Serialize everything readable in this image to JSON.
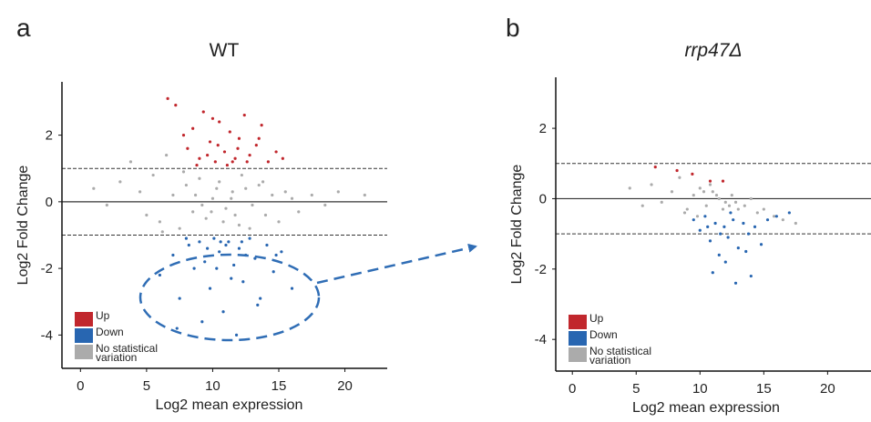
{
  "chart_data": [
    {
      "type": "scatter",
      "panel_label": "a",
      "title": "WT",
      "xlabel": "Log2 mean expression",
      "ylabel": "Log2 Fold Change",
      "xlim": [
        -1.4,
        23.2
      ],
      "ylim": [
        -5,
        3.6
      ],
      "xticks": [
        0,
        5,
        10,
        15,
        20
      ],
      "yticks": [
        -4,
        -2,
        0,
        2
      ],
      "reference_lines": [
        {
          "y": 1,
          "style": "dashed"
        },
        {
          "y": 0,
          "style": "solid"
        },
        {
          "y": -1,
          "style": "dashed"
        }
      ],
      "legend": "lower left",
      "series": [
        {
          "name": "Up",
          "color": "#c1272d",
          "x": [
            7.2,
            8.1,
            8.5,
            9.0,
            9.3,
            9.8,
            10.2,
            10.5,
            10.9,
            11.3,
            11.7,
            12.0,
            12.4,
            12.8,
            13.3,
            13.7,
            14.2,
            14.8,
            8.8,
            9.6,
            10.4,
            11.1,
            11.9,
            12.6,
            13.5,
            6.6,
            7.8,
            10.0,
            11.5,
            15.3
          ],
          "values": [
            2.9,
            1.6,
            2.2,
            1.3,
            2.7,
            1.8,
            1.2,
            2.4,
            1.5,
            2.1,
            1.3,
            1.9,
            2.6,
            1.4,
            1.7,
            2.3,
            1.2,
            1.5,
            1.1,
            1.4,
            1.7,
            1.1,
            1.6,
            1.2,
            1.9,
            3.1,
            2.0,
            2.5,
            1.2,
            1.3
          ]
        },
        {
          "name": "Down",
          "color": "#2866b1",
          "x": [
            6.0,
            7.0,
            7.5,
            8.2,
            8.6,
            9.0,
            9.4,
            9.8,
            10.1,
            10.5,
            10.8,
            11.2,
            11.6,
            12.0,
            12.3,
            12.8,
            13.2,
            13.6,
            14.1,
            14.6,
            15.2,
            16.0,
            8.0,
            9.2,
            10.3,
            11.0,
            11.8,
            12.5,
            13.4,
            10.6,
            11.4,
            9.6,
            12.2,
            7.3,
            14.8
          ],
          "values": [
            -2.2,
            -1.6,
            -2.9,
            -1.3,
            -2.0,
            -1.2,
            -1.8,
            -2.6,
            -1.1,
            -1.5,
            -3.3,
            -1.2,
            -1.9,
            -1.4,
            -2.4,
            -1.1,
            -1.7,
            -2.9,
            -1.3,
            -2.1,
            -1.5,
            -2.6,
            -1.1,
            -3.6,
            -2.0,
            -1.3,
            -4.0,
            -1.6,
            -3.1,
            -1.2,
            -2.3,
            -1.4,
            -1.2,
            -3.8,
            -1.6
          ]
        },
        {
          "name": "No statistical variation",
          "color": "#ababab",
          "x": [
            1.0,
            2.0,
            3.0,
            3.8,
            4.5,
            5.0,
            5.5,
            6.0,
            6.5,
            7.0,
            7.5,
            8.0,
            8.5,
            9.0,
            9.5,
            10.0,
            10.5,
            11.0,
            11.5,
            12.0,
            12.5,
            13.0,
            13.5,
            14.0,
            14.5,
            15.0,
            15.5,
            16.0,
            16.5,
            17.5,
            18.5,
            19.5,
            21.5,
            6.2,
            7.8,
            9.2,
            10.8,
            12.2,
            13.8,
            11.4,
            9.9,
            8.7,
            12.8,
            10.3,
            11.7
          ],
          "values": [
            0.4,
            -0.1,
            0.6,
            1.2,
            0.3,
            -0.4,
            0.8,
            -0.6,
            1.4,
            0.2,
            -0.8,
            0.5,
            -0.3,
            0.7,
            -0.5,
            0.1,
            0.6,
            -0.2,
            0.3,
            -0.7,
            0.4,
            -0.1,
            0.5,
            -0.4,
            0.2,
            -0.6,
            0.3,
            0.1,
            -0.3,
            0.2,
            -0.1,
            0.3,
            0.2,
            -0.9,
            0.9,
            -0.1,
            -0.6,
            0.8,
            0.6,
            0.1,
            -0.3,
            0.2,
            -0.8,
            0.4,
            -0.4
          ]
        }
      ]
    },
    {
      "type": "scatter",
      "panel_label": "b",
      "title": "rrp47Δ",
      "xlabel": "Log2 mean expression",
      "ylabel": "Log2 Fold Change",
      "xlim": [
        -1.3,
        23.4
      ],
      "ylim": [
        -4.9,
        3.45
      ],
      "xticks": [
        0,
        5,
        10,
        15,
        20
      ],
      "yticks": [
        -4,
        -2,
        0,
        2
      ],
      "reference_lines": [
        {
          "y": 1,
          "style": "dashed"
        },
        {
          "y": 0,
          "style": "solid"
        },
        {
          "y": -1,
          "style": "dashed"
        }
      ],
      "legend": "lower left",
      "series": [
        {
          "name": "Up",
          "color": "#c1272d",
          "x": [
            6.5,
            8.2,
            9.4,
            10.8,
            11.8
          ],
          "values": [
            0.9,
            0.8,
            0.7,
            0.5,
            0.5
          ]
        },
        {
          "name": "Down",
          "color": "#2866b1",
          "x": [
            9.5,
            10.0,
            10.4,
            10.8,
            11.2,
            11.5,
            11.9,
            12.2,
            12.6,
            13.0,
            13.4,
            13.8,
            14.3,
            14.8,
            15.3,
            16.0,
            17.0,
            11.0,
            12.0,
            12.8,
            13.6,
            11.6,
            10.6,
            12.4,
            14.0
          ],
          "values": [
            -0.6,
            -0.9,
            -0.5,
            -1.2,
            -0.7,
            -1.6,
            -0.8,
            -1.1,
            -0.6,
            -1.4,
            -0.7,
            -1.0,
            -0.8,
            -1.3,
            -0.6,
            -0.5,
            -0.4,
            -2.1,
            -1.8,
            -2.4,
            -1.5,
            -1.0,
            -0.8,
            -0.4,
            -2.2
          ]
        },
        {
          "name": "No statistical variation",
          "color": "#ababab",
          "x": [
            4.5,
            5.5,
            6.2,
            7.0,
            7.8,
            8.4,
            9.0,
            9.5,
            10.0,
            10.5,
            11.0,
            11.5,
            12.0,
            12.5,
            13.0,
            13.5,
            14.0,
            14.5,
            15.0,
            15.8,
            16.5,
            17.5,
            9.8,
            10.8,
            11.8,
            12.8,
            8.8,
            10.3,
            11.3,
            12.3
          ],
          "values": [
            0.3,
            -0.2,
            0.4,
            -0.1,
            0.2,
            0.6,
            -0.3,
            0.1,
            0.3,
            -0.2,
            0.2,
            0.0,
            -0.1,
            0.1,
            -0.3,
            -0.2,
            0.0,
            -0.4,
            -0.3,
            -0.5,
            -0.6,
            -0.7,
            -0.5,
            0.4,
            -0.3,
            -0.1,
            -0.4,
            0.2,
            0.1,
            -0.2
          ]
        }
      ]
    }
  ]
}
